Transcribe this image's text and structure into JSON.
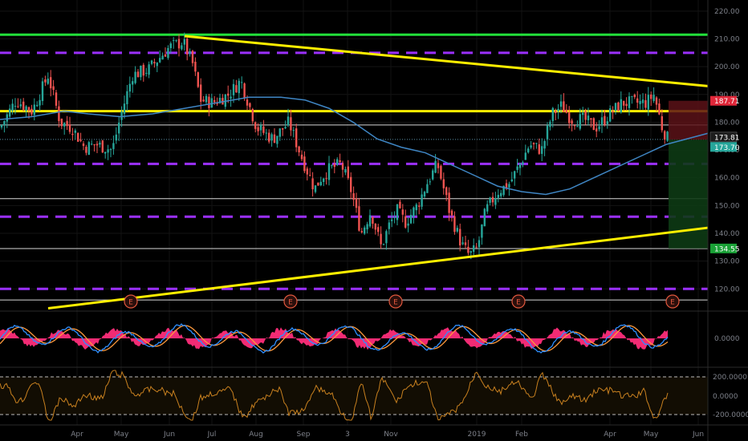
{
  "chart_data": {
    "type": "candlestick",
    "price_axis": {
      "ticks": [
        "220.00",
        "210.00",
        "200.00",
        "190.00",
        "180.00",
        "170.00",
        "160.00",
        "150.00",
        "140.00",
        "130.00",
        "120.00"
      ],
      "range": [
        112,
        224
      ]
    },
    "time_axis": {
      "labels": [
        "Apr",
        "May",
        "Jun",
        "Jul",
        "Aug",
        "Sep",
        "3",
        "Nov",
        "2019",
        "Feb",
        "Apr",
        "May",
        "Jun"
      ]
    },
    "price_tags": [
      {
        "value": 187.71,
        "label": "187.71",
        "color": "#e0283a"
      },
      {
        "value": 173.81,
        "label": "173.81",
        "color": "#1d1d1d"
      },
      {
        "value": 173.7,
        "label": "173.70",
        "color": "#26a69a"
      },
      {
        "value": 134.55,
        "label": "134.55",
        "color": "#19a136"
      }
    ],
    "earnings_markers": [
      "E",
      "E",
      "E",
      "E",
      "E"
    ],
    "oscillator": {
      "ticks": [
        "0.0000"
      ]
    },
    "cci": {
      "ticks": [
        "200.0000",
        "0.0000",
        "-200.0000"
      ]
    },
    "horizontal_levels": {
      "green_resistance": 211.5,
      "yellow_level": 184,
      "purple_dashed": [
        205,
        165,
        146,
        120
      ],
      "white_lines": [
        179,
        152.5,
        134.5,
        116
      ]
    },
    "trendlines": {
      "upper_yellow": [
        [
          230,
          211
        ],
        [
          882,
          193
        ]
      ],
      "lower_yellow": [
        [
          60,
          113
        ],
        [
          882,
          142
        ]
      ]
    },
    "position_box": {
      "entry": 173.7,
      "stop": 187.71,
      "target": 134.55
    },
    "colors": {
      "up": "#26a69a",
      "down": "#ef5350",
      "ma": "#3f86c4",
      "yellow": "#ffee00",
      "green": "#22e13a",
      "purple": "#9b30ff",
      "osc_hist": "#ff2d7a",
      "osc_fast": "#2e8fff",
      "osc_slow": "#ff9a3c",
      "cci_line": "#c8801f"
    }
  }
}
